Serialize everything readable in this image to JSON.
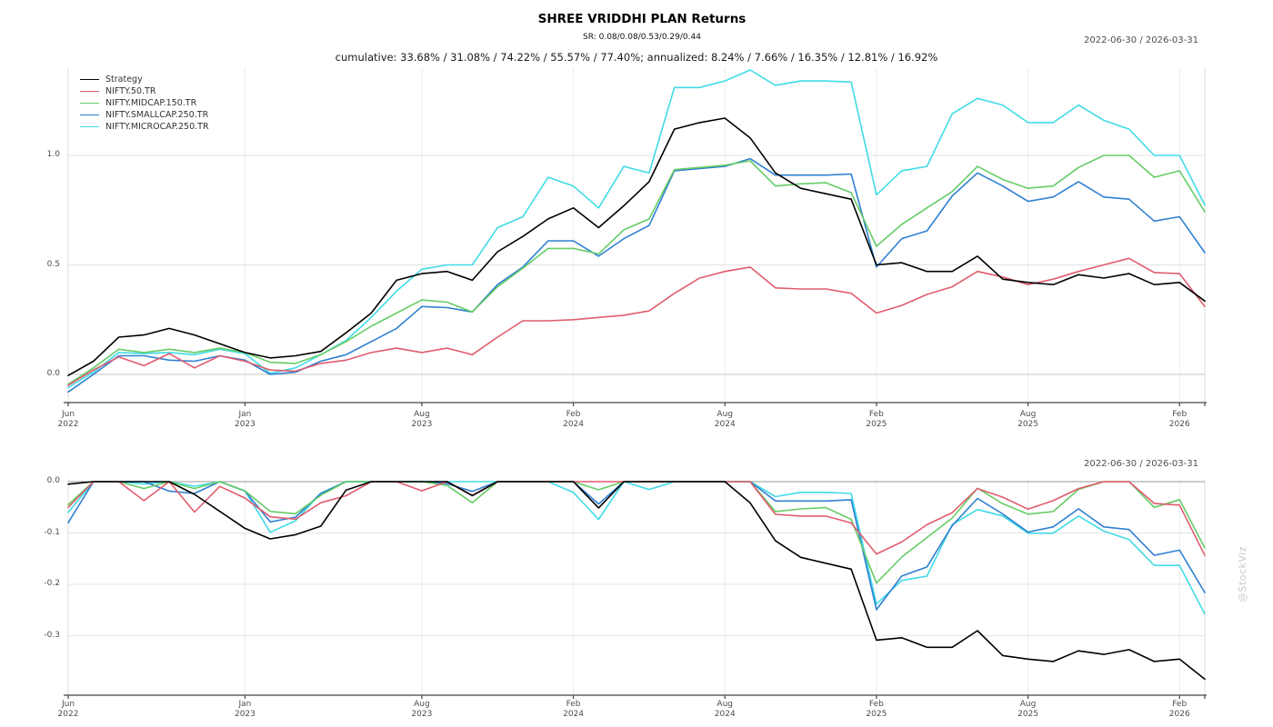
{
  "header": {
    "title": "SHREE VRIDDHI PLAN Returns",
    "subtitle": "SR: 0.08/0.08/0.53/0.29/0.44",
    "stats_line": "cumulative: 33.68% / 31.08% / 74.22% / 55.57% / 77.40%; annualized: 8.24% / 7.66% / 16.35% / 12.81% / 16.92%",
    "date_range_top": "2022-06-30 / 2026-03-31",
    "date_range_bottom": "2022-06-30 / 2026-03-31"
  },
  "watermark": "@StockViz",
  "chart_data": [
    {
      "type": "line",
      "name": "cumulative-returns",
      "date_range": "2022-06-30 / 2026-03-31",
      "x_start": "2022-06",
      "x_end": "2026-03",
      "points": 46,
      "grid": true,
      "legend_position": "top-left",
      "ylim": [
        -0.13,
        1.4
      ],
      "x_ticks": [
        {
          "month": "Jun",
          "year": "2022",
          "month_index": 0
        },
        {
          "month": "Jan",
          "year": "2023",
          "month_index": 7
        },
        {
          "month": "Aug",
          "year": "2023",
          "month_index": 14
        },
        {
          "month": "Feb",
          "year": "2024",
          "month_index": 20
        },
        {
          "month": "Aug",
          "year": "2024",
          "month_index": 26
        },
        {
          "month": "Feb",
          "year": "2025",
          "month_index": 32
        },
        {
          "month": "Aug",
          "year": "2025",
          "month_index": 38
        },
        {
          "month": "Feb",
          "year": "2026",
          "month_index": 44
        }
      ],
      "y_ticks": [
        {
          "label": "0.0",
          "value": 0.0
        },
        {
          "label": "0.5",
          "value": 0.5
        },
        {
          "label": "1.0",
          "value": 1.0
        }
      ],
      "series": [
        {
          "name": "Strategy",
          "color": "#000000",
          "values": [
            -0.005,
            0.06,
            0.17,
            0.18,
            0.21,
            0.18,
            0.14,
            0.1,
            0.075,
            0.085,
            0.105,
            0.19,
            0.28,
            0.43,
            0.46,
            0.47,
            0.43,
            0.56,
            0.63,
            0.71,
            0.76,
            0.67,
            0.77,
            0.88,
            1.12,
            1.15,
            1.17,
            1.08,
            0.92,
            0.85,
            0.825,
            0.8,
            0.5,
            0.51,
            0.47,
            0.47,
            0.54,
            0.435,
            0.42,
            0.41,
            0.455,
            0.44,
            0.46,
            0.41,
            0.42,
            0.335
          ]
        },
        {
          "name": "NIFTY.50.TR",
          "color": "#e05c6e",
          "values": [
            -0.05,
            0.02,
            0.08,
            0.04,
            0.095,
            0.03,
            0.085,
            0.06,
            0.02,
            0.015,
            0.05,
            0.065,
            0.1,
            0.12,
            0.1,
            0.12,
            0.09,
            0.17,
            0.245,
            0.245,
            0.25,
            0.26,
            0.27,
            0.29,
            0.37,
            0.44,
            0.47,
            0.49,
            0.395,
            0.39,
            0.39,
            0.37,
            0.28,
            0.315,
            0.365,
            0.4,
            0.47,
            0.445,
            0.41,
            0.435,
            0.47,
            0.5,
            0.53,
            0.465,
            0.46,
            0.31
          ]
        },
        {
          "name": "NIFTY.MIDCAP.150.TR",
          "color": "#67cc67",
          "values": [
            -0.045,
            0.03,
            0.115,
            0.1,
            0.115,
            0.1,
            0.12,
            0.1,
            0.055,
            0.05,
            0.09,
            0.15,
            0.22,
            0.28,
            0.34,
            0.33,
            0.285,
            0.4,
            0.485,
            0.575,
            0.575,
            0.55,
            0.66,
            0.71,
            0.935,
            0.945,
            0.955,
            0.975,
            0.86,
            0.87,
            0.875,
            0.83,
            0.585,
            0.685,
            0.76,
            0.835,
            0.95,
            0.89,
            0.85,
            0.86,
            0.945,
            1.0,
            1.0,
            0.9,
            0.93,
            0.742
          ]
        },
        {
          "name": "NIFTY.SMALLCAP.250.TR",
          "color": "#2f80d0",
          "values": [
            -0.08,
            0.0,
            0.085,
            0.085,
            0.065,
            0.06,
            0.085,
            0.065,
            0.0,
            0.01,
            0.06,
            0.09,
            0.15,
            0.21,
            0.31,
            0.305,
            0.285,
            0.41,
            0.49,
            0.61,
            0.61,
            0.54,
            0.62,
            0.68,
            0.93,
            0.94,
            0.95,
            0.985,
            0.91,
            0.91,
            0.91,
            0.915,
            0.49,
            0.62,
            0.655,
            0.815,
            0.92,
            0.86,
            0.79,
            0.81,
            0.88,
            0.81,
            0.8,
            0.7,
            0.72,
            0.556
          ]
        },
        {
          "name": "NIFTY.MICROCAP.250.TR",
          "color": "#41dbe6",
          "values": [
            -0.06,
            0.01,
            0.1,
            0.095,
            0.1,
            0.09,
            0.115,
            0.095,
            0.005,
            0.03,
            0.09,
            0.155,
            0.26,
            0.38,
            0.48,
            0.5,
            0.5,
            0.67,
            0.72,
            0.9,
            0.86,
            0.76,
            0.95,
            0.92,
            1.31,
            1.31,
            1.34,
            1.39,
            1.32,
            1.34,
            1.34,
            1.335,
            0.82,
            0.93,
            0.95,
            1.19,
            1.26,
            1.23,
            1.15,
            1.15,
            1.23,
            1.16,
            1.12,
            1.0,
            1.0,
            0.774
          ]
        }
      ]
    },
    {
      "type": "line",
      "name": "drawdowns",
      "date_range": "2022-06-30 / 2026-03-31",
      "derived": "drawdown of each cumulative-returns series: dd = (1+c)/max(1, running_max(1+c)) - 1",
      "grid": true,
      "ylim": [
        -0.42,
        0.005
      ],
      "x_ticks": [
        {
          "month": "Jun",
          "year": "2022",
          "month_index": 0
        },
        {
          "month": "Jan",
          "year": "2023",
          "month_index": 7
        },
        {
          "month": "Aug",
          "year": "2023",
          "month_index": 14
        },
        {
          "month": "Feb",
          "year": "2024",
          "month_index": 20
        },
        {
          "month": "Aug",
          "year": "2024",
          "month_index": 26
        },
        {
          "month": "Feb",
          "year": "2025",
          "month_index": 32
        },
        {
          "month": "Aug",
          "year": "2025",
          "month_index": 38
        },
        {
          "month": "Feb",
          "year": "2026",
          "month_index": 44
        }
      ],
      "y_ticks": [
        {
          "label": "0.0",
          "value": 0.0
        },
        {
          "label": "-0.1",
          "value": -0.1
        },
        {
          "label": "-0.2",
          "value": -0.2
        },
        {
          "label": "-0.3",
          "value": -0.3
        }
      ]
    }
  ]
}
